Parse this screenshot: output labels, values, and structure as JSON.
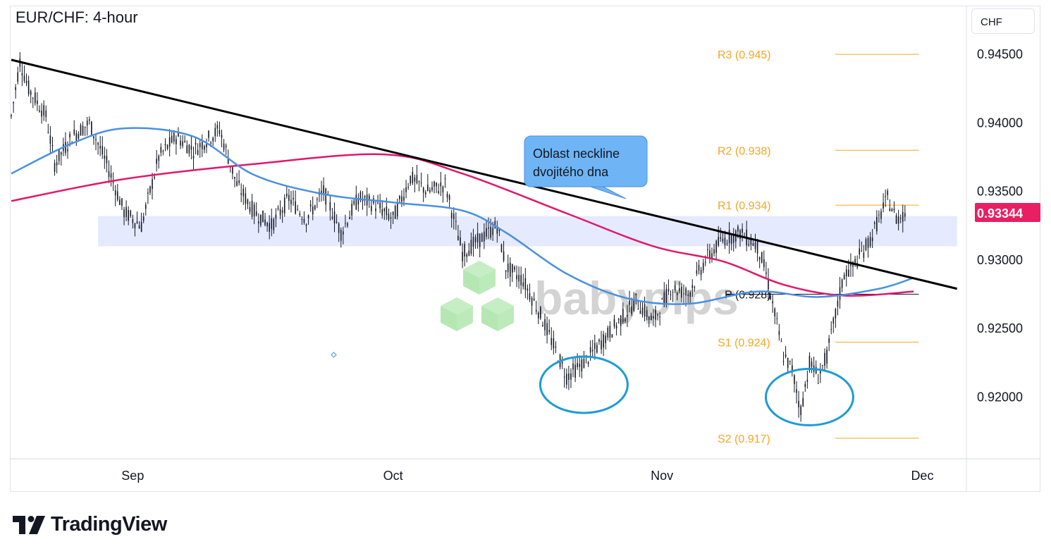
{
  "header": {
    "title": "EUR/CHF: 4-hour",
    "currency": "CHF"
  },
  "footer": {
    "brand": "TradingView"
  },
  "watermark": "babypips",
  "chart_data": {
    "type": "candlestick",
    "title": "EUR/CHF: 4-hour",
    "ylim": [
      0.9155,
      0.9485
    ],
    "y_ticks": [
      0.945,
      0.94,
      0.935,
      0.93,
      0.925,
      0.92
    ],
    "y_tick_labels": [
      "0.94500",
      "0.94000",
      "0.93500",
      "0.93000",
      "0.92500",
      "0.92000"
    ],
    "x_range": [
      "2024-08-18",
      "2024-12-06"
    ],
    "x_ticks": [
      {
        "date": "2024-09-01",
        "label": "Sep"
      },
      {
        "date": "2024-10-01",
        "label": "Oct"
      },
      {
        "date": "2024-11-01",
        "label": "Nov"
      },
      {
        "date": "2024-12-01",
        "label": "Dec"
      }
    ],
    "last_price": {
      "value": 0.93344,
      "label": "0.93344",
      "color": "#e91e63"
    },
    "price_path": [
      [
        "2024-08-18",
        0.9405
      ],
      [
        "2024-08-19",
        0.9445
      ],
      [
        "2024-08-20",
        0.9425
      ],
      [
        "2024-08-22",
        0.9405
      ],
      [
        "2024-08-23",
        0.937
      ],
      [
        "2024-08-25",
        0.939
      ],
      [
        "2024-08-27",
        0.94
      ],
      [
        "2024-08-29",
        0.937
      ],
      [
        "2024-08-31",
        0.9335
      ],
      [
        "2024-09-02",
        0.9325
      ],
      [
        "2024-09-04",
        0.9375
      ],
      [
        "2024-09-06",
        0.939
      ],
      [
        "2024-09-08",
        0.938
      ],
      [
        "2024-09-11",
        0.9395
      ],
      [
        "2024-09-13",
        0.9355
      ],
      [
        "2024-09-15",
        0.9335
      ],
      [
        "2024-09-17",
        0.9325
      ],
      [
        "2024-09-19",
        0.9345
      ],
      [
        "2024-09-21",
        0.933
      ],
      [
        "2024-09-23",
        0.935
      ],
      [
        "2024-09-25",
        0.932
      ],
      [
        "2024-09-27",
        0.9345
      ],
      [
        "2024-09-29",
        0.934
      ],
      [
        "2024-10-01",
        0.933
      ],
      [
        "2024-10-03",
        0.936
      ],
      [
        "2024-10-05",
        0.935
      ],
      [
        "2024-10-07",
        0.9355
      ],
      [
        "2024-10-09",
        0.9305
      ],
      [
        "2024-10-11",
        0.9315
      ],
      [
        "2024-10-13",
        0.9325
      ],
      [
        "2024-10-14",
        0.9295
      ],
      [
        "2024-10-16",
        0.9285
      ],
      [
        "2024-10-18",
        0.926
      ],
      [
        "2024-10-20",
        0.923
      ],
      [
        "2024-10-21",
        0.9215
      ],
      [
        "2024-10-23",
        0.9225
      ],
      [
        "2024-10-25",
        0.924
      ],
      [
        "2024-10-27",
        0.9255
      ],
      [
        "2024-10-29",
        0.927
      ],
      [
        "2024-10-31",
        0.9255
      ],
      [
        "2024-11-02",
        0.928
      ],
      [
        "2024-11-04",
        0.9275
      ],
      [
        "2024-11-06",
        0.93
      ],
      [
        "2024-11-08",
        0.9315
      ],
      [
        "2024-11-10",
        0.932
      ],
      [
        "2024-11-12",
        0.931
      ],
      [
        "2024-11-13",
        0.929
      ],
      [
        "2024-11-14",
        0.926
      ],
      [
        "2024-11-15",
        0.923
      ],
      [
        "2024-11-16",
        0.922
      ],
      [
        "2024-11-17",
        0.919
      ],
      [
        "2024-11-18",
        0.9225
      ],
      [
        "2024-11-19",
        0.9215
      ],
      [
        "2024-11-20",
        0.923
      ],
      [
        "2024-11-21",
        0.926
      ],
      [
        "2024-11-22",
        0.929
      ],
      [
        "2024-11-23",
        0.9295
      ],
      [
        "2024-11-25",
        0.9315
      ],
      [
        "2024-11-26",
        0.933
      ],
      [
        "2024-11-27",
        0.9345
      ],
      [
        "2024-11-28",
        0.933
      ],
      [
        "2024-11-29",
        0.9334
      ]
    ],
    "trendline": {
      "from": [
        "2024-08-18",
        0.9446
      ],
      "to": [
        "2024-12-05",
        0.9279
      ],
      "color": "#000000"
    },
    "ma_blue": {
      "color": "#4a90e2",
      "points": [
        [
          "2024-08-18",
          0.9363
        ],
        [
          "2024-08-25",
          0.9385
        ],
        [
          "2024-08-31",
          0.9396
        ],
        [
          "2024-09-08",
          0.939
        ],
        [
          "2024-09-15",
          0.9362
        ],
        [
          "2024-09-23",
          0.9348
        ],
        [
          "2024-10-01",
          0.9342
        ],
        [
          "2024-10-09",
          0.9336
        ],
        [
          "2024-10-14",
          0.932
        ],
        [
          "2024-10-21",
          0.929
        ],
        [
          "2024-10-28",
          0.9272
        ],
        [
          "2024-11-04",
          0.9268
        ],
        [
          "2024-11-12",
          0.9277
        ],
        [
          "2024-11-19",
          0.9273
        ],
        [
          "2024-11-26",
          0.9279
        ],
        [
          "2024-11-30",
          0.9287
        ]
      ]
    },
    "ma_red": {
      "color": "#e0186b",
      "points": [
        [
          "2024-08-18",
          0.9343
        ],
        [
          "2024-08-31",
          0.9359
        ],
        [
          "2024-09-15",
          0.937
        ],
        [
          "2024-09-30",
          0.9377
        ],
        [
          "2024-10-09",
          0.9363
        ],
        [
          "2024-10-21",
          0.9334
        ],
        [
          "2024-10-31",
          0.931
        ],
        [
          "2024-11-08",
          0.9299
        ],
        [
          "2024-11-15",
          0.9282
        ],
        [
          "2024-11-22",
          0.9274
        ],
        [
          "2024-11-30",
          0.9277
        ]
      ]
    },
    "neckline_zone": {
      "from": "2024-08-28",
      "to": "2024-12-05",
      "y_low": 0.931,
      "y_high": 0.9332,
      "color": "#e6eaff"
    },
    "pivot_levels": [
      {
        "label": "R3 (0.945)",
        "value": 0.945,
        "color": "#f5a623"
      },
      {
        "label": "R2 (0.938)",
        "value": 0.938,
        "color": "#f5a623"
      },
      {
        "label": "R1 (0.934)",
        "value": 0.934,
        "color": "#f5a623"
      },
      {
        "label": "P (0.928)",
        "value": 0.9275,
        "color": "#131722"
      },
      {
        "label": "S1 (0.924)",
        "value": 0.924,
        "color": "#f5a623"
      },
      {
        "label": "S2 (0.917)",
        "value": 0.917,
        "color": "#f5a623"
      }
    ],
    "annotations": [
      {
        "type": "callout",
        "lines": [
          "Oblast neckline",
          "dvojitého dna"
        ],
        "color": "#6fb5f5",
        "text_color": "#131722"
      },
      {
        "type": "ellipse",
        "center": [
          "2024-10-23",
          0.9209
        ],
        "color": "#1e9bd7"
      },
      {
        "type": "ellipse",
        "center": [
          "2024-11-18",
          0.92
        ],
        "color": "#1e9bd7"
      }
    ]
  }
}
